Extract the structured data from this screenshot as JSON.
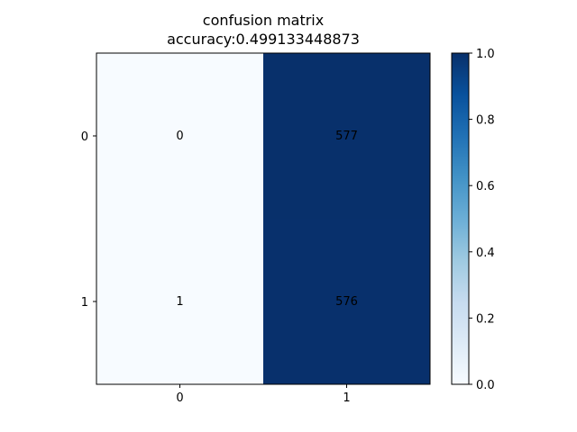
{
  "chart_data": {
    "type": "heatmap",
    "title": "confusion matrix",
    "subtitle": "accuracy:0.499133448873",
    "x_categories": [
      "0",
      "1"
    ],
    "y_categories": [
      "0",
      "1"
    ],
    "values": [
      [
        0,
        577
      ],
      [
        1,
        576
      ]
    ],
    "normalized": [
      [
        0.0,
        1.0
      ],
      [
        0.0017,
        0.9983
      ]
    ],
    "colormap": "Blues",
    "colorbar": {
      "min": 0.0,
      "max": 1.0,
      "ticks": [
        "0.0",
        "0.2",
        "0.4",
        "0.6",
        "0.8",
        "1.0"
      ]
    },
    "grid": false
  }
}
